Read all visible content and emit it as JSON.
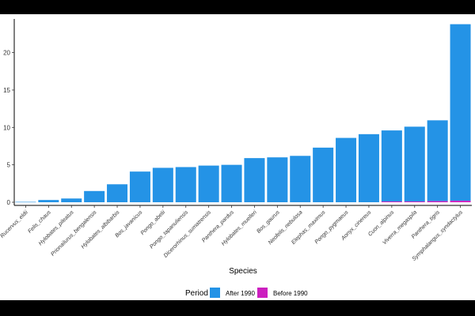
{
  "chart_data": {
    "type": "bar",
    "stacked": true,
    "xlabel": "Species",
    "ylabel": "",
    "ylim": [
      0,
      24.5
    ],
    "yticks": [
      0,
      5,
      10,
      15,
      20
    ],
    "grid": false,
    "legend_position": "bottom",
    "legend_title": "Period",
    "categories": [
      "Rucervus_eldii",
      "Felis_chaus",
      "Hylobates_pileatus",
      "Prionailurus_bengalensis",
      "Hylobates_albibarbis",
      "Bos_javanicus",
      "Pongo_abelii",
      "Pongo_tapanuliensis",
      "Dicerorhinus_sumatrensis",
      "Panthera_pardus",
      "Hylobates_muelleri",
      "Bos_gaurus",
      "Neofelis_nebulosa",
      "Elephas_maximus",
      "Pongo_pygmaeus",
      "Aonyx_cinereus",
      "Cuon_alpinus",
      "Viverra_megaspila",
      "Panthera_tigris",
      "Symphalangus_syndactylus"
    ],
    "series": [
      {
        "name": "Before 1990",
        "color": "#CC1FBF",
        "values": [
          0,
          0,
          0,
          0,
          0,
          0,
          0,
          0,
          0,
          0,
          0,
          0,
          0,
          0,
          0,
          0,
          0.1,
          0.1,
          0.15,
          0.2
        ]
      },
      {
        "name": "After 1990",
        "color": "#2493E6",
        "values": [
          0.05,
          0.3,
          0.5,
          1.5,
          2.4,
          4.1,
          4.6,
          4.7,
          4.9,
          5.0,
          5.9,
          6.0,
          6.2,
          7.3,
          8.6,
          9.1,
          9.5,
          10.0,
          10.8,
          23.6
        ]
      }
    ]
  }
}
